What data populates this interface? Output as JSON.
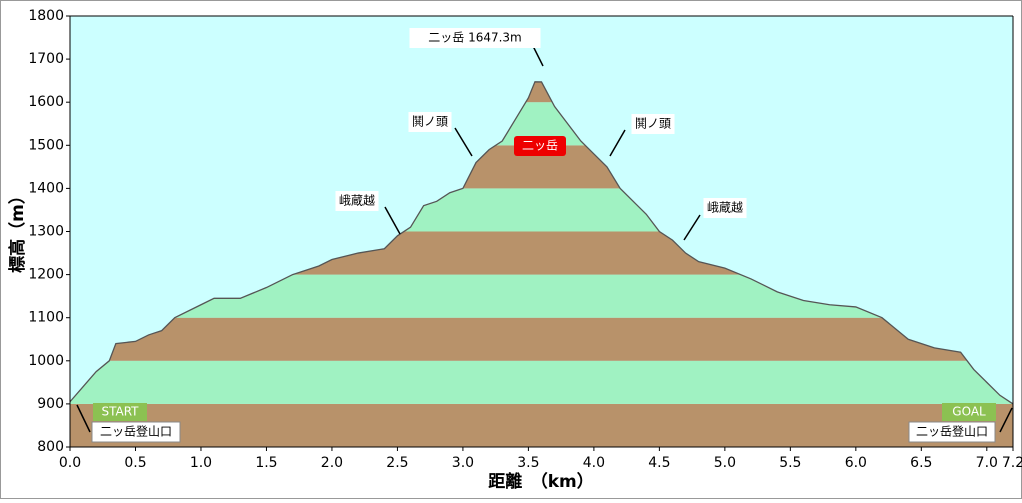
{
  "chart_data": {
    "type": "area",
    "x_label": "距離　（km）",
    "y_label": "標高（m）",
    "x": [
      0,
      0.1,
      0.2,
      0.3,
      0.35,
      0.5,
      0.6,
      0.7,
      0.8,
      1.0,
      1.1,
      1.3,
      1.5,
      1.7,
      1.9,
      2.0,
      2.2,
      2.4,
      2.5,
      2.6,
      2.7,
      2.8,
      2.9,
      3.0,
      3.1,
      3.2,
      3.3,
      3.4,
      3.5,
      3.55,
      3.6,
      3.7,
      3.8,
      3.9,
      4.0,
      4.1,
      4.2,
      4.3,
      4.4,
      4.5,
      4.6,
      4.7,
      4.8,
      5.0,
      5.2,
      5.4,
      5.6,
      5.8,
      6.0,
      6.2,
      6.4,
      6.6,
      6.8,
      6.9,
      7.0,
      7.1,
      7.2
    ],
    "values": [
      905,
      940,
      975,
      1000,
      1040,
      1045,
      1060,
      1070,
      1100,
      1130,
      1145,
      1145,
      1170,
      1200,
      1220,
      1235,
      1250,
      1260,
      1290,
      1310,
      1360,
      1370,
      1390,
      1400,
      1460,
      1490,
      1510,
      1560,
      1610,
      1647.3,
      1647,
      1590,
      1550,
      1510,
      1480,
      1450,
      1400,
      1370,
      1340,
      1300,
      1280,
      1250,
      1230,
      1215,
      1190,
      1160,
      1140,
      1130,
      1125,
      1100,
      1050,
      1030,
      1020,
      980,
      950,
      920,
      900
    ],
    "xlim": [
      0,
      7.2
    ],
    "xticks": [
      {
        "value": 0,
        "label": "0.0"
      },
      0.5,
      {
        "value": 1,
        "label": "1.0"
      },
      1.5,
      {
        "value": 2,
        "label": "2.0"
      },
      2.5,
      {
        "value": 3,
        "label": "3.0"
      },
      3.5,
      {
        "value": 4,
        "label": "4.0"
      },
      4.5,
      {
        "value": 5,
        "label": "5.0"
      },
      5.5,
      {
        "value": 6,
        "label": "6.0"
      },
      6.5,
      {
        "value": 7,
        "label": "7.0"
      },
      7.2
    ],
    "ylim": [
      800,
      1800
    ],
    "yticks": [
      800,
      900,
      1000,
      1100,
      1200,
      1300,
      1400,
      1500,
      1600,
      1700,
      1800
    ],
    "band_colors": [
      "#b8926a",
      "#a0f2c2"
    ],
    "background": "#ccffff",
    "line_color": "#555555",
    "annotations": [
      "二ッ岳 1647.3m",
      "鬨ノ頭",
      "二ッ岳",
      "鬨ノ頭",
      "峨蔵越",
      "峨蔵越",
      "START",
      "二ッ岳登山口",
      "GOAL",
      "二ッ岳登山口"
    ]
  }
}
